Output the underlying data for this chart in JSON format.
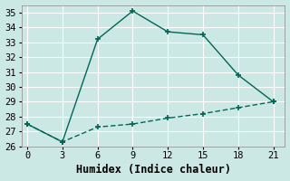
{
  "xlabel": "Humidex (Indice chaleur)",
  "background_color": "#cce8e4",
  "grid_color": "#b0d4d0",
  "line_color": "#006655",
  "line1_x": [
    0,
    3,
    6,
    9,
    12,
    15,
    18,
    21
  ],
  "line1_y": [
    27.5,
    26.3,
    33.2,
    35.1,
    33.7,
    33.5,
    30.8,
    29.0
  ],
  "line2_x": [
    0,
    3,
    6,
    9,
    12,
    15,
    18,
    21
  ],
  "line2_y": [
    27.5,
    26.3,
    27.3,
    27.5,
    27.9,
    28.2,
    28.6,
    29.0
  ],
  "xlim": [
    -0.5,
    22
  ],
  "ylim": [
    26,
    35.5
  ],
  "xticks": [
    0,
    3,
    6,
    9,
    12,
    15,
    18,
    21
  ],
  "yticks": [
    26,
    27,
    28,
    29,
    30,
    31,
    32,
    33,
    34,
    35
  ],
  "tick_fontsize": 7.5,
  "label_fontsize": 8.5,
  "marker": "+",
  "marker_size": 5,
  "linewidth": 1.0
}
